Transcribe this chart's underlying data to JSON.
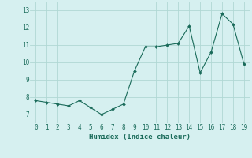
{
  "x": [
    0,
    1,
    2,
    3,
    4,
    5,
    6,
    7,
    8,
    9,
    10,
    11,
    12,
    13,
    14,
    15,
    16,
    17,
    18,
    19
  ],
  "y": [
    7.8,
    7.7,
    7.6,
    7.5,
    7.8,
    7.4,
    7.0,
    7.3,
    7.6,
    9.5,
    10.9,
    10.9,
    11.0,
    11.1,
    12.1,
    9.4,
    10.6,
    12.8,
    12.2,
    9.9
  ],
  "line_color": "#1a6b5a",
  "marker": "D",
  "marker_size": 2.0,
  "bg_color": "#d6f0f0",
  "grid_color": "#b0d8d4",
  "xlabel": "Humidex (Indice chaleur)",
  "xlabel_color": "#1a6b5a",
  "tick_color": "#1a6b5a",
  "ylim": [
    6.5,
    13.5
  ],
  "xlim": [
    -0.5,
    19.5
  ],
  "yticks": [
    7,
    8,
    9,
    10,
    11,
    12,
    13
  ],
  "xticks": [
    0,
    1,
    2,
    3,
    4,
    5,
    6,
    7,
    8,
    9,
    10,
    11,
    12,
    13,
    14,
    15,
    16,
    17,
    18,
    19
  ],
  "figsize": [
    3.2,
    2.0
  ],
  "dpi": 100
}
